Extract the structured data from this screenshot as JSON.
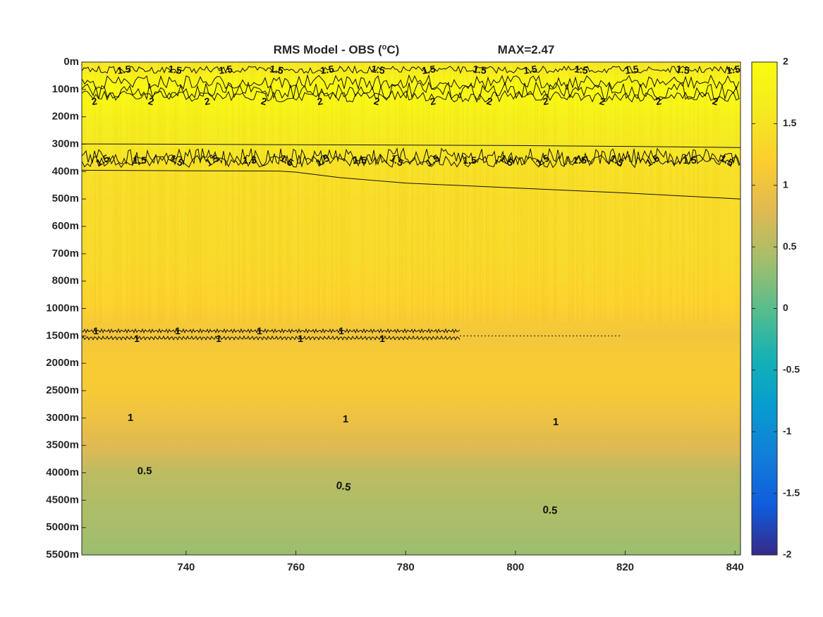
{
  "chart_data": {
    "type": "heatmap",
    "title_prefix": "RMS Model - OBS (",
    "title_sup": "o",
    "title_suffix": "C)",
    "max_label": "MAX=2.47",
    "colormap": "parula",
    "xlim": [
      721,
      841
    ],
    "x_ticks": [
      740,
      760,
      780,
      800,
      820,
      840
    ],
    "y_tick_labels": [
      "0m",
      "100m",
      "200m",
      "300m",
      "400m",
      "500m",
      "600m",
      "700m",
      "800m",
      "1000m",
      "1500m",
      "2000m",
      "2500m",
      "3000m",
      "3500m",
      "4000m",
      "4500m",
      "5000m",
      "5500m"
    ],
    "depth_profile": [
      {
        "depth": "0m",
        "value": 1.55
      },
      {
        "depth": "100m",
        "value": 2.05
      },
      {
        "depth": "200m",
        "value": 1.75
      },
      {
        "depth": "300m",
        "value": 1.58
      },
      {
        "depth": "400m",
        "value": 1.45
      },
      {
        "depth": "500m",
        "value": 1.4
      },
      {
        "depth": "600m",
        "value": 1.38
      },
      {
        "depth": "700m",
        "value": 1.37
      },
      {
        "depth": "800m",
        "value": 1.33
      },
      {
        "depth": "1000m",
        "value": 1.22
      },
      {
        "depth": "1500m",
        "value": 1.05
      },
      {
        "depth": "2000m",
        "value": 1.15
      },
      {
        "depth": "2500m",
        "value": 1.12
      },
      {
        "depth": "3000m",
        "value": 0.98
      },
      {
        "depth": "3500m",
        "value": 0.8
      },
      {
        "depth": "4000m",
        "value": 0.55
      },
      {
        "depth": "4500m",
        "value": 0.48
      },
      {
        "depth": "5000m",
        "value": 0.42
      },
      {
        "depth": "5500m",
        "value": 0.35
      }
    ],
    "colorbar": {
      "limits": [
        -2,
        2
      ],
      "ticks": [
        2,
        1.5,
        1,
        0.5,
        0,
        -0.5,
        -1,
        -1.5,
        -2
      ],
      "tick_labels": [
        "2",
        "1.5",
        "1",
        "0.5",
        "0",
        "-0.5",
        "-1",
        "-1.5",
        "-2"
      ]
    },
    "contour_labels": {
      "top_band": [
        "1.5",
        "1.5",
        "1.5",
        "1.5",
        "1.5",
        "1.5",
        "1.5",
        "1.5",
        "1.5",
        "1.5",
        "1.5",
        "1.5",
        "1.5"
      ],
      "band_100m": [
        "2",
        "2",
        "2",
        "2",
        "2",
        "2",
        "2",
        "2",
        "2",
        "2",
        "2",
        "2"
      ],
      "band_350m": [
        "1.5",
        "1.5",
        "1.5",
        "1.5",
        "1.5",
        "1.5",
        "1.5",
        "1.5",
        "1.5",
        "1.5",
        "1.5",
        "1.5",
        "1.5",
        "1.5",
        "1.5",
        "1.5",
        "1.5",
        "1.5"
      ],
      "band_1500m": [
        "1",
        "1",
        "1",
        "1",
        "1",
        "1",
        "1",
        "1"
      ],
      "line_3000m": [
        "1",
        "1",
        "1"
      ],
      "line_4000m": [
        "0.5",
        "0.5",
        "0.5"
      ]
    },
    "contour_3000m": [
      [
        721,
        2.99
      ],
      [
        740,
        3.0
      ],
      [
        760,
        3.02
      ],
      [
        780,
        3.03
      ],
      [
        800,
        3.05
      ],
      [
        820,
        3.08
      ],
      [
        841,
        3.12
      ]
    ],
    "contour_4000m": [
      [
        721,
        3.95
      ],
      [
        740,
        3.97
      ],
      [
        757,
        3.98
      ],
      [
        760,
        4.02
      ],
      [
        764,
        4.12
      ],
      [
        768,
        4.22
      ],
      [
        780,
        4.42
      ],
      [
        800,
        4.6
      ],
      [
        820,
        4.78
      ],
      [
        841,
        5.0
      ]
    ]
  }
}
